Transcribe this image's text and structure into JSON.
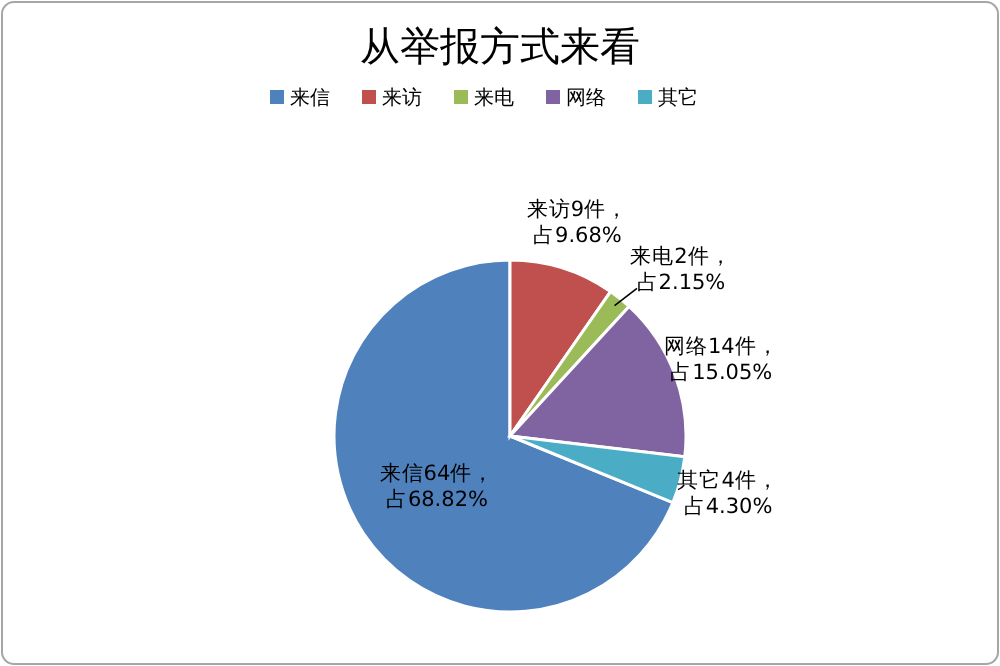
{
  "chart_data": {
    "type": "pie",
    "title": "从举报方式来看",
    "categories": [
      "来信",
      "来访",
      "来电",
      "网络",
      "其它"
    ],
    "values": [
      64,
      9,
      2,
      14,
      4
    ],
    "colors": [
      "#4f81bd",
      "#c0504d",
      "#9bbb59",
      "#8064a2",
      "#4bacc6"
    ],
    "value_labels": [
      "来信64件，占68.82%",
      "来访9件，占9.68%",
      "来电2件，占2.15%",
      "网络14件，占15.05%",
      "其它4件，占4.30%"
    ],
    "legend": "top"
  }
}
